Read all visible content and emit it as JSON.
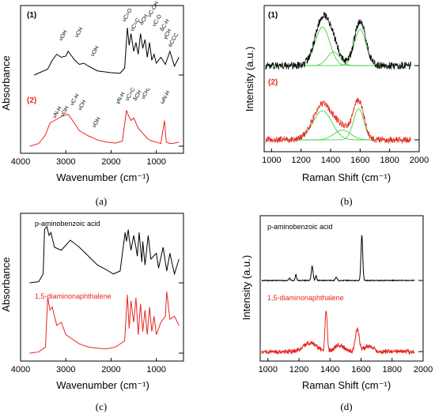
{
  "colors": {
    "black": "#000000",
    "red": "#e8251f",
    "fit_green": "#2ecc2e"
  },
  "chart_data": [
    {
      "panel": "a",
      "type": "line",
      "caption": "(a)",
      "xlabel": "Wavenumber (cm⁻¹)",
      "ylabel": "Absorbance",
      "xlim": [
        4000,
        400
      ],
      "x_ticks": [
        4000,
        3000,
        2000,
        1000
      ],
      "series": [
        {
          "name": "(1)",
          "color": "#000000",
          "x": [
            3700,
            3400,
            3300,
            3200,
            3100,
            3000,
            2950,
            2900,
            2800,
            2700,
            2600,
            2500,
            2300,
            2000,
            1800,
            1700,
            1640,
            1600,
            1560,
            1500,
            1450,
            1400,
            1350,
            1300,
            1250,
            1200,
            1150,
            1100,
            1050,
            1000,
            900,
            800,
            700,
            600,
            500
          ],
          "y": [
            0.0,
            0.1,
            0.25,
            0.35,
            0.3,
            0.32,
            0.4,
            0.35,
            0.25,
            0.18,
            0.2,
            0.15,
            0.07,
            0.04,
            0.03,
            0.12,
            0.8,
            0.5,
            0.7,
            0.4,
            0.55,
            0.35,
            0.7,
            0.45,
            0.6,
            0.3,
            0.55,
            0.25,
            0.35,
            0.2,
            0.3,
            0.18,
            0.4,
            0.15,
            0.3
          ]
        },
        {
          "name": "(2)",
          "color": "#e8251f",
          "x": [
            3800,
            3600,
            3450,
            3350,
            3250,
            3150,
            3050,
            2950,
            2850,
            2700,
            2500,
            2300,
            2100,
            1900,
            1750,
            1660,
            1620,
            1560,
            1500,
            1450,
            1400,
            1350,
            1300,
            1200,
            1100,
            1000,
            900,
            820,
            780,
            700,
            600,
            500
          ],
          "y": [
            0.0,
            0.05,
            0.22,
            0.45,
            0.5,
            0.55,
            0.6,
            0.62,
            0.5,
            0.3,
            0.2,
            0.12,
            0.08,
            0.06,
            0.1,
            0.7,
            0.6,
            0.5,
            0.55,
            0.45,
            0.35,
            0.3,
            0.25,
            0.15,
            0.1,
            0.08,
            0.05,
            0.5,
            0.08,
            0.05,
            0.06,
            0.08
          ]
        }
      ],
      "annotations_1": [
        "νOH",
        "νCH",
        "νOH",
        "νC=O",
        "νC=C",
        "δCH",
        "νC-OH",
        "νC-O",
        "δC-H",
        "γCH",
        "αCCC"
      ],
      "annotations_2": [
        "νN-H",
        "νOH",
        "νC-H",
        "νCH",
        "νOH",
        "γN-H",
        "νC=C",
        "δCH",
        "νCH₂",
        "ωN-H"
      ]
    },
    {
      "panel": "b",
      "type": "line",
      "caption": "(b)",
      "xlabel": "Raman Shift (cm⁻¹)",
      "ylabel": "Intensity (a.u.)",
      "xlim": [
        950,
        2000
      ],
      "x_ticks": [
        1000,
        1200,
        1400,
        1600,
        1800,
        2000
      ],
      "series": [
        {
          "name": "(1)",
          "color": "#000000",
          "peaks": [
            {
              "center": 1345,
              "height": 0.85,
              "width": 70
            },
            {
              "center": 1600,
              "height": 0.8,
              "width": 55
            },
            {
              "center": 1420,
              "height": 0.3,
              "width": 60
            }
          ]
        },
        {
          "name": "(2)",
          "color": "#e8251f",
          "peaks": [
            {
              "center": 1345,
              "height": 0.75,
              "width": 90
            },
            {
              "center": 1590,
              "height": 0.8,
              "width": 50
            },
            {
              "center": 1480,
              "height": 0.25,
              "width": 80
            }
          ]
        }
      ]
    },
    {
      "panel": "c",
      "type": "line",
      "caption": "(c)",
      "xlabel": "Wavenumber (cm⁻¹)",
      "ylabel": "Absorbance",
      "xlim": [
        4000,
        400
      ],
      "x_ticks": [
        4000,
        3000,
        2000,
        1000
      ],
      "series": [
        {
          "name": "p-aminobenzoic acid",
          "color": "#000000",
          "x": [
            3800,
            3600,
            3500,
            3470,
            3420,
            3370,
            3330,
            3250,
            3100,
            2900,
            2700,
            2500,
            2300,
            2100,
            1950,
            1800,
            1690,
            1660,
            1620,
            1600,
            1560,
            1500,
            1450,
            1420,
            1380,
            1320,
            1300,
            1250,
            1180,
            1120,
            1000,
            950,
            850,
            770,
            700,
            600,
            500
          ],
          "y": [
            0.0,
            0.02,
            0.15,
            0.9,
            0.95,
            0.8,
            0.85,
            0.6,
            0.55,
            0.72,
            0.6,
            0.45,
            0.3,
            0.22,
            0.15,
            0.2,
            0.85,
            0.7,
            0.9,
            0.75,
            0.55,
            0.8,
            0.6,
            0.45,
            0.85,
            0.35,
            0.7,
            0.3,
            0.8,
            0.4,
            0.5,
            0.25,
            0.6,
            0.2,
            0.5,
            0.15,
            0.4
          ]
        },
        {
          "name": "1,5-diaminonaphthalene",
          "color": "#e8251f",
          "x": [
            3800,
            3600,
            3450,
            3400,
            3350,
            3300,
            3250,
            3200,
            3100,
            3000,
            2900,
            2700,
            2500,
            2300,
            2100,
            1900,
            1700,
            1640,
            1600,
            1560,
            1500,
            1450,
            1400,
            1350,
            1300,
            1250,
            1200,
            1150,
            1100,
            1050,
            1000,
            900,
            800,
            770,
            700,
            600,
            500
          ],
          "y": [
            0.0,
            0.02,
            0.1,
            0.9,
            0.7,
            0.75,
            0.6,
            0.45,
            0.5,
            0.3,
            0.25,
            0.15,
            0.1,
            0.08,
            0.07,
            0.1,
            0.2,
            0.95,
            0.4,
            0.85,
            0.5,
            0.9,
            0.3,
            0.8,
            0.35,
            0.7,
            0.3,
            0.75,
            0.35,
            0.6,
            0.3,
            0.5,
            0.6,
            1.0,
            0.55,
            0.6,
            0.45
          ]
        }
      ]
    },
    {
      "panel": "d",
      "type": "line",
      "caption": "(d)",
      "xlabel": "Raman Shift (cm⁻¹)",
      "ylabel": "Intensity (a.u.)",
      "xlim": [
        950,
        2000
      ],
      "x_ticks": [
        1000,
        1200,
        1400,
        1600,
        1800,
        2000
      ],
      "series": [
        {
          "name": "p-aminobenzoic acid",
          "color": "#000000",
          "peaks": [
            {
              "center": 1140,
              "height": 0.05,
              "width": 6
            },
            {
              "center": 1180,
              "height": 0.12,
              "width": 6
            },
            {
              "center": 1285,
              "height": 0.3,
              "width": 8
            },
            {
              "center": 1310,
              "height": 0.1,
              "width": 6
            },
            {
              "center": 1440,
              "height": 0.07,
              "width": 8
            },
            {
              "center": 1605,
              "height": 0.95,
              "width": 8
            }
          ]
        },
        {
          "name": "1,5-diaminonaphthalene",
          "color": "#e8251f",
          "peaks": [
            {
              "center": 1270,
              "height": 0.2,
              "width": 60
            },
            {
              "center": 1375,
              "height": 0.95,
              "width": 10
            },
            {
              "center": 1460,
              "height": 0.15,
              "width": 40
            },
            {
              "center": 1575,
              "height": 0.5,
              "width": 18
            },
            {
              "center": 1650,
              "height": 0.12,
              "width": 40
            }
          ]
        }
      ]
    }
  ]
}
